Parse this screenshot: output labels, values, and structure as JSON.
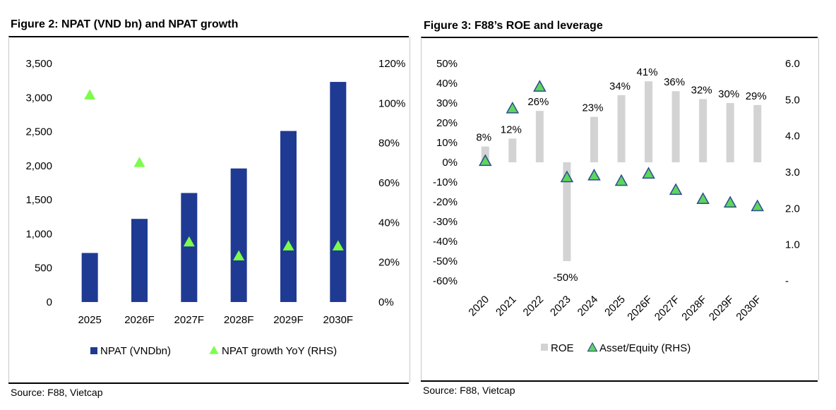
{
  "figure2": {
    "title": "Figure 2: NPAT (VND bn) and NPAT growth",
    "source": "Source: F88, Vietcap"
  },
  "figure3": {
    "title": "Figure 3: F88’s ROE and leverage",
    "source": "Source: F88, Vietcap"
  },
  "colors": {
    "npat_bar": "#1F3A93",
    "growth_marker": "#7CFC4C",
    "roe_bar": "#D3D3D3",
    "asset_equity_marker_fill": "#5CD65C",
    "asset_equity_marker_stroke": "#2E4B8F"
  },
  "chart_data": [
    {
      "type": "bar",
      "categories": [
        "2025",
        "2026F",
        "2027F",
        "2028F",
        "2029F",
        "2030F"
      ],
      "series": [
        {
          "name": "NPAT (VNDbn)",
          "type": "bar",
          "axis": "left",
          "values": [
            720,
            1220,
            1600,
            1960,
            2510,
            3230
          ]
        },
        {
          "name": "NPAT growth YoY (RHS)",
          "type": "scatter",
          "marker": "triangle",
          "axis": "right",
          "values": [
            104,
            70,
            30,
            23,
            28,
            28
          ]
        }
      ],
      "yticks_left": [
        "0",
        "500",
        "1,000",
        "1,500",
        "2,000",
        "2,500",
        "3,000",
        "3,500"
      ],
      "yticks_right": [
        "0%",
        "20%",
        "40%",
        "60%",
        "80%",
        "100%",
        "120%"
      ],
      "ylim_left": [
        0,
        3500
      ],
      "ylim_right": [
        0,
        120
      ],
      "legend_position": "bottom",
      "grid": false
    },
    {
      "type": "bar",
      "categories": [
        "2020",
        "2021",
        "2022",
        "2023",
        "2024",
        "2025",
        "2026F",
        "2027F",
        "2028F",
        "2029F",
        "2030F"
      ],
      "series": [
        {
          "name": "ROE",
          "type": "bar",
          "axis": "left",
          "values": [
            8,
            12,
            26,
            -50,
            23,
            34,
            41,
            36,
            32,
            30,
            29
          ]
        },
        {
          "name": "Asset/Equity (RHS)",
          "type": "scatter",
          "marker": "triangle",
          "axis": "right",
          "values": [
            3.3,
            4.75,
            5.35,
            2.85,
            2.9,
            2.75,
            2.95,
            2.5,
            2.25,
            2.15,
            2.05
          ]
        }
      ],
      "data_labels": [
        "8%",
        "12%",
        "26%",
        "-50%",
        "23%",
        "34%",
        "41%",
        "36%",
        "32%",
        "30%",
        "29%"
      ],
      "yticks_left": [
        "-60%",
        "-50%",
        "-40%",
        "-30%",
        "-20%",
        "-10%",
        "0%",
        "10%",
        "20%",
        "30%",
        "40%",
        "50%"
      ],
      "yticks_right": [
        "-",
        "1.0",
        "2.0",
        "3.0",
        "4.0",
        "5.0",
        "6.0"
      ],
      "ylim_left": [
        -60,
        50
      ],
      "ylim_right": [
        0,
        6
      ],
      "legend_position": "bottom",
      "grid": false
    }
  ]
}
